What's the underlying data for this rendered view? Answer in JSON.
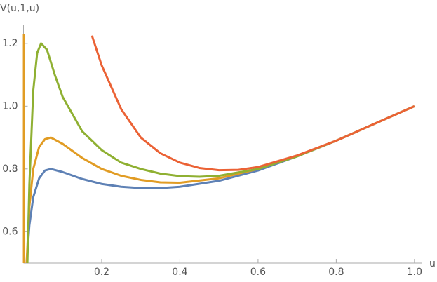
{
  "chart_data": {
    "type": "line",
    "ylabel": "V(u,1,u)",
    "xlabel": "u",
    "xlim": [
      0,
      1.02
    ],
    "ylim": [
      0.5,
      1.26
    ],
    "xticks": [
      0.2,
      0.4,
      0.6,
      0.8,
      {
        "value": 1,
        "label": "1.0"
      }
    ],
    "yticks": [
      0.6,
      0.8,
      {
        "value": 1,
        "label": "1.0"
      },
      1.2
    ],
    "series": [
      {
        "color": "#5e81b5",
        "x": [
          0.008,
          0.015,
          0.025,
          0.04,
          0.055,
          0.07,
          0.1,
          0.15,
          0.2,
          0.25,
          0.3,
          0.35,
          0.4,
          0.5,
          0.6,
          0.7,
          0.8,
          0.9,
          1.0
        ],
        "values": [
          0.5,
          0.62,
          0.71,
          0.77,
          0.795,
          0.8,
          0.79,
          0.768,
          0.752,
          0.743,
          0.739,
          0.739,
          0.743,
          0.762,
          0.795,
          0.84,
          0.89,
          0.945,
          1.0
        ]
      },
      {
        "color": "#e19c24",
        "x": [
          0.008,
          0.015,
          0.025,
          0.04,
          0.055,
          0.07,
          0.1,
          0.15,
          0.2,
          0.25,
          0.3,
          0.35,
          0.4,
          0.5,
          0.6,
          0.7,
          0.8,
          0.9,
          1.0
        ],
        "values": [
          0.5,
          0.68,
          0.8,
          0.87,
          0.895,
          0.9,
          0.88,
          0.835,
          0.8,
          0.778,
          0.765,
          0.757,
          0.756,
          0.77,
          0.8,
          0.842,
          0.89,
          0.945,
          1.0
        ]
      },
      {
        "color": "#e19c24",
        "x": [
          0.001,
          0.001
        ],
        "values": [
          0.5,
          1.23
        ]
      },
      {
        "color": "#8fb032",
        "x": [
          0.01,
          0.015,
          0.025,
          0.035,
          0.045,
          0.06,
          0.08,
          0.1,
          0.15,
          0.2,
          0.25,
          0.3,
          0.35,
          0.4,
          0.45,
          0.5,
          0.6,
          0.7,
          0.8,
          0.9,
          1.0
        ],
        "values": [
          0.5,
          0.75,
          1.05,
          1.17,
          1.2,
          1.18,
          1.1,
          1.03,
          0.92,
          0.86,
          0.82,
          0.8,
          0.785,
          0.777,
          0.775,
          0.778,
          0.8,
          0.84,
          0.89,
          0.945,
          1.0
        ]
      },
      {
        "color": "#eb6235",
        "x": [
          0.175,
          0.2,
          0.25,
          0.3,
          0.35,
          0.4,
          0.45,
          0.5,
          0.55,
          0.6,
          0.7,
          0.8,
          0.9,
          1.0
        ],
        "values": [
          1.225,
          1.13,
          0.99,
          0.9,
          0.85,
          0.82,
          0.803,
          0.796,
          0.797,
          0.806,
          0.843,
          0.89,
          0.945,
          1.0
        ]
      }
    ]
  }
}
